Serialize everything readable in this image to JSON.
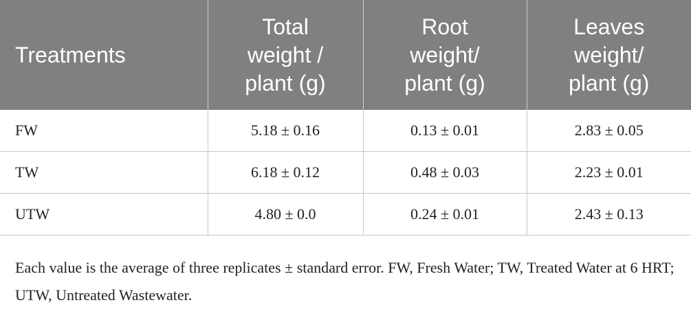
{
  "table": {
    "header": [
      [
        "Treatments"
      ],
      [
        "Total",
        "weight /",
        "plant (g)"
      ],
      [
        "Root",
        "weight/",
        "plant (g)"
      ],
      [
        "Leaves",
        "weight/",
        "plant (g)"
      ]
    ],
    "rows": [
      [
        "FW",
        "5.18 ± 0.16",
        "0.13 ± 0.01",
        "2.83 ± 0.05"
      ],
      [
        "TW",
        "6.18 ± 0.12",
        "0.48 ± 0.03",
        "2.23 ± 0.01"
      ],
      [
        "UTW",
        "4.80 ± 0.0",
        "0.24 ± 0.01",
        "2.43 ± 0.13"
      ]
    ]
  },
  "footnote": "Each value is the average of three replicates ± standard error. FW, Fresh Water; TW, Treated Water at 6 HRT; UTW, Untreated Wastewater."
}
